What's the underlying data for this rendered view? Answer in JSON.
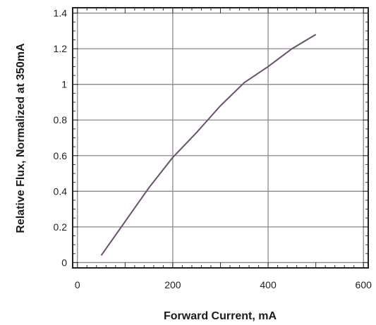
{
  "chart_data": {
    "type": "line",
    "xlabel": "Forward Current, mA",
    "ylabel": "Relative Flux, Normalized at 350mA",
    "xlim": [
      -10,
      610
    ],
    "ylim": [
      -0.03,
      1.43
    ],
    "x_ticks": [
      0,
      200,
      400,
      600
    ],
    "x_tick_labels": [
      "0",
      "200",
      "400",
      "600"
    ],
    "y_ticks": [
      0,
      0.2,
      0.4,
      0.6,
      0.8,
      1.0,
      1.2,
      1.4
    ],
    "y_tick_labels": [
      "0",
      "0.2",
      "0.4",
      "0.6",
      "0.8",
      "1",
      "1.2",
      "1.4"
    ],
    "grid": true,
    "series": [
      {
        "color": "#6a4f6e",
        "x": [
          50,
          100,
          150,
          200,
          250,
          300,
          350,
          400,
          450,
          500
        ],
        "y": [
          0.04,
          0.23,
          0.42,
          0.59,
          0.73,
          0.88,
          1.01,
          1.1,
          1.2,
          1.28
        ]
      }
    ]
  }
}
